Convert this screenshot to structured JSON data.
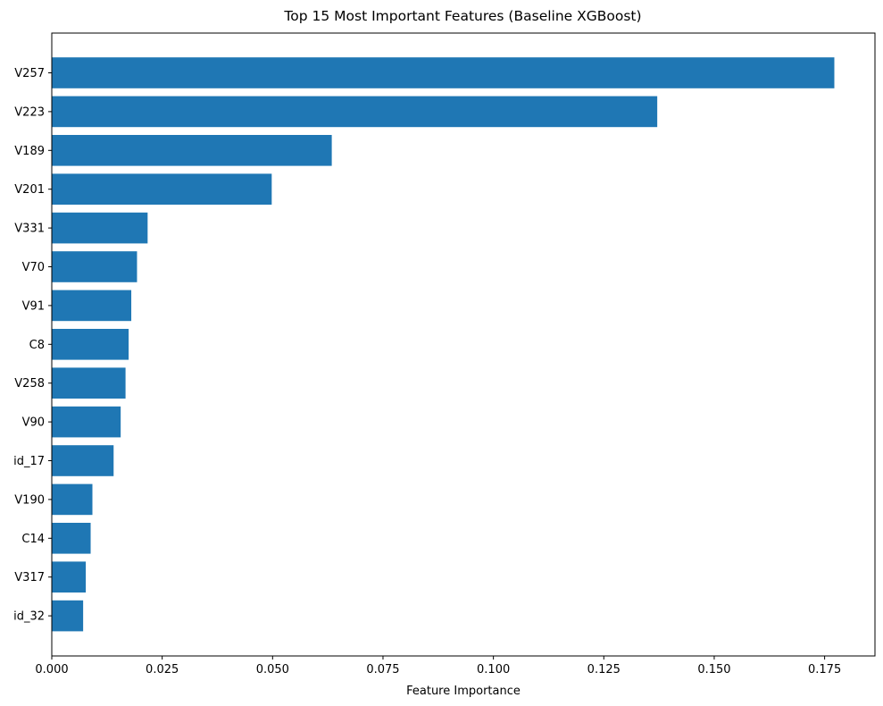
{
  "chart_data": {
    "type": "bar",
    "orientation": "horizontal",
    "title": "Top 15 Most Important Features (Baseline XGBoost)",
    "xlabel": "Feature Importance",
    "ylabel": "",
    "categories": [
      "V257",
      "V223",
      "V189",
      "V201",
      "V331",
      "V70",
      "V91",
      "C8",
      "V258",
      "V90",
      "id_17",
      "V190",
      "C14",
      "V317",
      "id_32"
    ],
    "values": [
      0.1772,
      0.1371,
      0.0634,
      0.0498,
      0.0217,
      0.0193,
      0.018,
      0.0174,
      0.0167,
      0.0156,
      0.014,
      0.0092,
      0.0088,
      0.0077,
      0.0071
    ],
    "xlim": [
      0,
      0.1864
    ],
    "xticks": [
      0.0,
      0.025,
      0.05,
      0.075,
      0.1,
      0.125,
      0.15,
      0.175
    ],
    "xtick_labels": [
      "0.000",
      "0.025",
      "0.050",
      "0.075",
      "0.100",
      "0.125",
      "0.150",
      "0.175"
    ],
    "bar_color": "#1f77b4",
    "grid": false,
    "legend": "none"
  }
}
